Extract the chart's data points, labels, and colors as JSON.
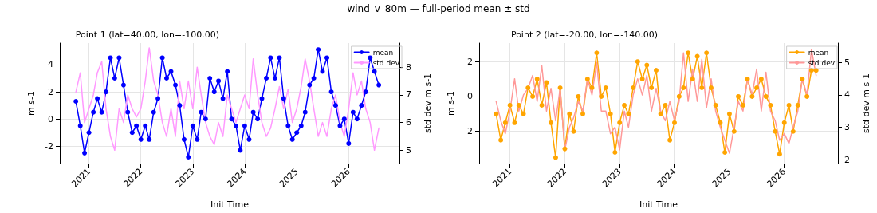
{
  "chart_data": [
    {
      "type": "line",
      "title": "Point 1 (lat=40.00, lon=-100.00)",
      "annotations": [
        "wind_v_80m — full-period mean ± std"
      ],
      "xlabel": "Init Time",
      "ylabel": "m s-1",
      "y2label": "std dev m s-1",
      "x": [
        "2020-10",
        "2020-11",
        "2020-12",
        "2021-01",
        "2021-02",
        "2021-03",
        "2021-04",
        "2021-05",
        "2021-06",
        "2021-07",
        "2021-08",
        "2021-09",
        "2021-10",
        "2021-11",
        "2021-12",
        "2022-01",
        "2022-02",
        "2022-03",
        "2022-04",
        "2022-05",
        "2022-06",
        "2022-07",
        "2022-08",
        "2022-09",
        "2022-10",
        "2022-11",
        "2022-12",
        "2023-01",
        "2023-02",
        "2023-03",
        "2023-04",
        "2023-05",
        "2023-06",
        "2023-07",
        "2023-08",
        "2023-09",
        "2023-10",
        "2023-11",
        "2023-12",
        "2024-01",
        "2024-02",
        "2024-03",
        "2024-04",
        "2024-05",
        "2024-06",
        "2024-07",
        "2024-08",
        "2024-09",
        "2024-10",
        "2024-11",
        "2024-12",
        "2025-01",
        "2025-02",
        "2025-03",
        "2025-04",
        "2025-05",
        "2025-06",
        "2025-07",
        "2025-08",
        "2025-09",
        "2025-10",
        "2025-11",
        "2025-12",
        "2026-01",
        "2026-02",
        "2026-03",
        "2026-04",
        "2026-05",
        "2026-06",
        "2026-07",
        "2026-08"
      ],
      "series": [
        {
          "name": "mean",
          "color": "#0000ff",
          "values": [
            1.3,
            -0.5,
            -2.5,
            -1,
            0.5,
            1.5,
            0.5,
            2,
            4.5,
            3,
            4.5,
            2.5,
            0.5,
            -1,
            -0.5,
            -1.5,
            -0.5,
            -1.5,
            0.5,
            1.5,
            4.5,
            3,
            3.5,
            2.5,
            1,
            -1.5,
            -2.8,
            -0.5,
            -1.5,
            0.5,
            0,
            3,
            2,
            2.8,
            1.5,
            3.5,
            0,
            -0.5,
            -2.3,
            -0.5,
            -1.5,
            0.5,
            0,
            1.5,
            3,
            4.5,
            3,
            4.5,
            1.5,
            -0.5,
            -1.5,
            -1,
            -0.5,
            0.5,
            2.5,
            3,
            5.1,
            3.5,
            4.5,
            2,
            1,
            -0.5,
            0,
            -1.8,
            0.5,
            0,
            1,
            2,
            4.5,
            3.5,
            2.5
          ]
        },
        {
          "name": "std dev",
          "color": "#ff99ff",
          "axis": "y2",
          "marker": "none",
          "values": [
            7.1,
            7.8,
            6,
            6.5,
            7,
            7.8,
            8.2,
            6.5,
            5.5,
            5,
            6.5,
            6,
            7,
            6.5,
            6.2,
            6.5,
            7.5,
            8.7,
            7.5,
            7,
            6,
            5.5,
            6.5,
            5.5,
            7.5,
            6.5,
            7.5,
            6.5,
            8,
            7,
            6,
            5.5,
            5.2,
            6,
            5.5,
            7,
            6.5,
            6,
            6.5,
            7,
            6.5,
            8.3,
            7,
            6,
            5.5,
            5.8,
            6.5,
            7.3,
            6.5,
            7.2,
            6,
            6.5,
            7.3,
            8.3,
            7.5,
            6.5,
            5.5,
            6,
            5.5,
            6.5,
            7,
            6,
            5.5,
            6.5,
            7.8,
            7,
            7.5,
            6.5,
            6,
            5,
            5.8
          ]
        }
      ],
      "xlim": [
        "2020-06-10",
        "2026-12-24"
      ],
      "xticks": [
        "2021",
        "2022",
        "2023",
        "2024",
        "2025",
        "2026"
      ],
      "ylim": [
        -3.27,
        5.58
      ],
      "yticks": [
        -2,
        0,
        2,
        4
      ],
      "y2lim": [
        4.52,
        8.87
      ],
      "y2ticks": [
        5,
        6,
        7,
        8
      ],
      "grid": true,
      "legend": "top right",
      "marker": "circle",
      "line_style": "solid"
    },
    {
      "type": "line",
      "title": "Point 2 (lat=-20.00, lon=-140.00)",
      "xlabel": "Init Time",
      "ylabel": "m s-1",
      "y2label": "std dev m s-1",
      "x": [
        "2020-10",
        "2020-11",
        "2020-12",
        "2021-01",
        "2021-02",
        "2021-03",
        "2021-04",
        "2021-05",
        "2021-06",
        "2021-07",
        "2021-08",
        "2021-09",
        "2021-10",
        "2021-11",
        "2021-12",
        "2022-01",
        "2022-02",
        "2022-03",
        "2022-04",
        "2022-05",
        "2022-06",
        "2022-07",
        "2022-08",
        "2022-09",
        "2022-10",
        "2022-11",
        "2022-12",
        "2023-01",
        "2023-02",
        "2023-03",
        "2023-04",
        "2023-05",
        "2023-06",
        "2023-07",
        "2023-08",
        "2023-09",
        "2023-10",
        "2023-11",
        "2023-12",
        "2024-01",
        "2024-02",
        "2024-03",
        "2024-04",
        "2024-05",
        "2024-06",
        "2024-07",
        "2024-08",
        "2024-09",
        "2024-10",
        "2024-11",
        "2024-12",
        "2025-01",
        "2025-02",
        "2025-03",
        "2025-04",
        "2025-05",
        "2025-06",
        "2025-07",
        "2025-08",
        "2025-09",
        "2025-10",
        "2025-11",
        "2025-12",
        "2026-01",
        "2026-02",
        "2026-03",
        "2026-04",
        "2026-05",
        "2026-06",
        "2026-07",
        "2026-08"
      ],
      "series": [
        {
          "name": "mean",
          "color": "#ffa500",
          "values": [
            -1,
            -2.5,
            -1.5,
            -0.5,
            -1.5,
            -0.5,
            -1,
            0.5,
            0,
            1,
            -0.5,
            0.8,
            -1.5,
            -3.5,
            0.5,
            -3,
            -1,
            -2,
            0,
            -1,
            1,
            0.5,
            2.5,
            0,
            0.5,
            -1,
            -3.2,
            -1.5,
            -0.5,
            -1,
            0.5,
            2,
            1,
            1.8,
            0.5,
            1.5,
            -1,
            -0.5,
            -2.5,
            -1.5,
            0,
            0.5,
            2.5,
            1,
            2.3,
            0.5,
            2.5,
            0.5,
            -0.5,
            -1.5,
            -3.2,
            -1,
            -2,
            0,
            -0.5,
            1,
            0,
            0.5,
            1,
            0,
            -0.5,
            -2,
            -3.3,
            -1.5,
            -0.5,
            -2,
            -0.5,
            1,
            0,
            1.5,
            1.5
          ]
        },
        {
          "name": "std dev",
          "color": "#ff9999",
          "axis": "y2",
          "marker": "none",
          "values": [
            3.8,
            3.2,
            2.8,
            3.5,
            4.5,
            3.5,
            4,
            4.2,
            4.6,
            3.8,
            4.9,
            3.5,
            4.2,
            3.2,
            4.2,
            2.3,
            3,
            3.3,
            3.8,
            3.5,
            4.5,
            4,
            5,
            3.5,
            3.5,
            2.8,
            3,
            2.3,
            3.5,
            3,
            4,
            4.5,
            4,
            4.6,
            3.5,
            4.2,
            3.5,
            3.2,
            3.8,
            3.2,
            3.8,
            5.3,
            3.8,
            4.8,
            3.8,
            5.1,
            3.6,
            4.5,
            3.5,
            3,
            2.6,
            2.2,
            3,
            3.8,
            3.5,
            4.5,
            4,
            4.8,
            3.5,
            4.7,
            3.5,
            3.2,
            2.6,
            2.8,
            2.5,
            3,
            3.5,
            4.5,
            4,
            5.4,
            4.6
          ]
        }
      ],
      "xlim": [
        "2020-06-10",
        "2026-12-24"
      ],
      "xticks": [
        "2021",
        "2022",
        "2023",
        "2024",
        "2025",
        "2026"
      ],
      "ylim": [
        -3.84,
        3.06
      ],
      "yticks": [
        -2,
        0,
        2
      ],
      "y2lim": [
        1.88,
        5.6
      ],
      "y2ticks": [
        2,
        3,
        4,
        5
      ],
      "grid": true,
      "legend": "top right",
      "marker": "circle",
      "line_style": "solid"
    }
  ]
}
